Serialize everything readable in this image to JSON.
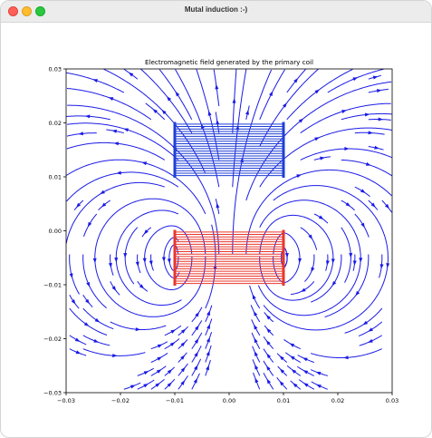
{
  "window": {
    "title": "Mutal induction :-)",
    "buttons": {
      "close": "close-button",
      "minimize": "minimize-button",
      "maximize": "maximize-button"
    }
  },
  "chart_data": {
    "type": "streamplot",
    "title": "Electromagnetic field generated by the primary coil",
    "xlabel": "",
    "ylabel": "",
    "xlim": [
      -0.03,
      0.03
    ],
    "ylim": [
      -0.03,
      0.03
    ],
    "x_ticks": [
      "−0.03",
      "−0.02",
      "−0.01",
      "0.00",
      "0.01",
      "0.02",
      "0.03"
    ],
    "y_ticks": [
      "0.03",
      "0.02",
      "0.01",
      "0.00",
      "−0.01",
      "−0.02",
      "−0.03"
    ],
    "grid": false,
    "streamline_color": "#1a1ae6",
    "coils": [
      {
        "name": "primary",
        "color": "#e8372d",
        "x": [
          -0.01,
          0.01
        ],
        "y": [
          -0.01,
          0.0
        ],
        "turns": 22
      },
      {
        "name": "secondary",
        "color": "#1f3fd6",
        "x": [
          -0.01,
          0.01
        ],
        "y": [
          0.01,
          0.02
        ],
        "turns": 22
      }
    ]
  }
}
